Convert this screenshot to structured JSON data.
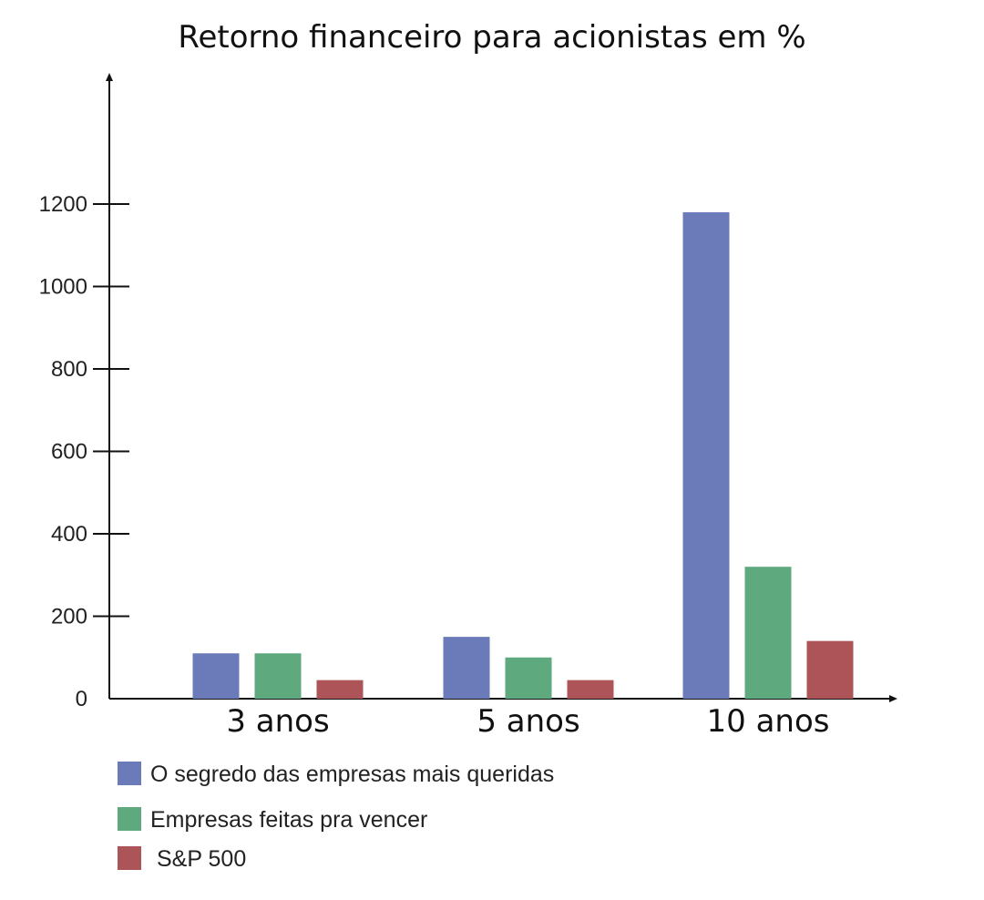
{
  "chart_data": {
    "type": "bar",
    "title": "Retorno financeiro para acionistas em %",
    "categories": [
      "3 anos",
      "5 anos",
      "10 anos"
    ],
    "y_ticks": [
      "0",
      "200",
      "400",
      "600",
      "800",
      "1000",
      "1200"
    ],
    "ylim": [
      0,
      1250
    ],
    "legend_position": "bottom-left",
    "grid": false,
    "series": [
      {
        "name": "O segredo das empresas mais queridas",
        "color": "#6B7AB9",
        "values": [
          110,
          150,
          1180
        ]
      },
      {
        "name": "Empresas feitas pra vencer",
        "color": "#5EAA7E",
        "values": [
          110,
          100,
          320
        ]
      },
      {
        "name": "S&P 500",
        "color": "#AC5457",
        "values": [
          45,
          45,
          140
        ]
      }
    ]
  }
}
